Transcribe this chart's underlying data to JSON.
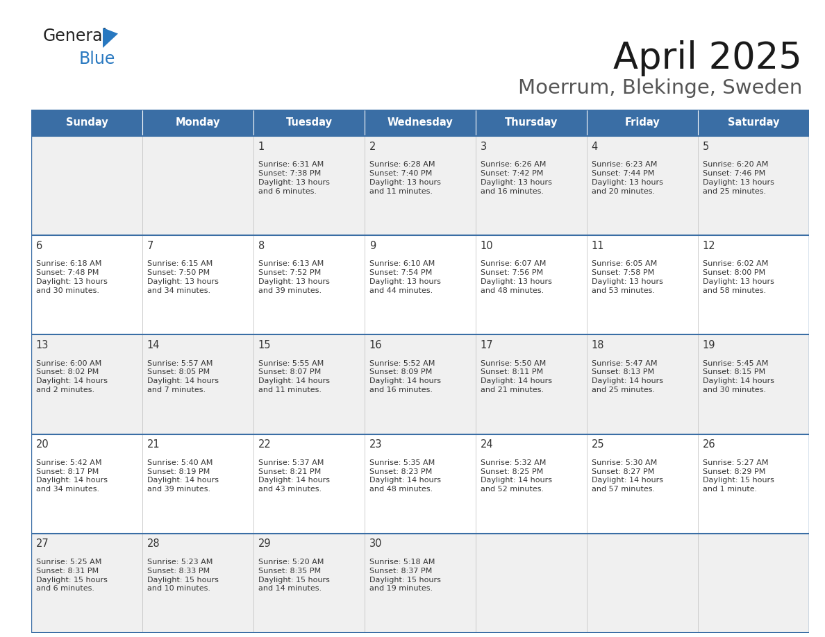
{
  "title": "April 2025",
  "subtitle": "Moerrum, Blekinge, Sweden",
  "header_bg": "#3a6ea5",
  "header_text": "#ffffff",
  "row_bg_odd": "#f0f0f0",
  "row_bg_even": "#ffffff",
  "cell_text": "#333333",
  "border_color": "#3a6ea5",
  "days_of_week": [
    "Sunday",
    "Monday",
    "Tuesday",
    "Wednesday",
    "Thursday",
    "Friday",
    "Saturday"
  ],
  "logo_general_color": "#222222",
  "logo_blue_color": "#2878c0",
  "logo_triangle_color": "#2878c0",
  "weeks": [
    [
      {
        "day": "",
        "info": ""
      },
      {
        "day": "",
        "info": ""
      },
      {
        "day": "1",
        "info": "Sunrise: 6:31 AM\nSunset: 7:38 PM\nDaylight: 13 hours\nand 6 minutes."
      },
      {
        "day": "2",
        "info": "Sunrise: 6:28 AM\nSunset: 7:40 PM\nDaylight: 13 hours\nand 11 minutes."
      },
      {
        "day": "3",
        "info": "Sunrise: 6:26 AM\nSunset: 7:42 PM\nDaylight: 13 hours\nand 16 minutes."
      },
      {
        "day": "4",
        "info": "Sunrise: 6:23 AM\nSunset: 7:44 PM\nDaylight: 13 hours\nand 20 minutes."
      },
      {
        "day": "5",
        "info": "Sunrise: 6:20 AM\nSunset: 7:46 PM\nDaylight: 13 hours\nand 25 minutes."
      }
    ],
    [
      {
        "day": "6",
        "info": "Sunrise: 6:18 AM\nSunset: 7:48 PM\nDaylight: 13 hours\nand 30 minutes."
      },
      {
        "day": "7",
        "info": "Sunrise: 6:15 AM\nSunset: 7:50 PM\nDaylight: 13 hours\nand 34 minutes."
      },
      {
        "day": "8",
        "info": "Sunrise: 6:13 AM\nSunset: 7:52 PM\nDaylight: 13 hours\nand 39 minutes."
      },
      {
        "day": "9",
        "info": "Sunrise: 6:10 AM\nSunset: 7:54 PM\nDaylight: 13 hours\nand 44 minutes."
      },
      {
        "day": "10",
        "info": "Sunrise: 6:07 AM\nSunset: 7:56 PM\nDaylight: 13 hours\nand 48 minutes."
      },
      {
        "day": "11",
        "info": "Sunrise: 6:05 AM\nSunset: 7:58 PM\nDaylight: 13 hours\nand 53 minutes."
      },
      {
        "day": "12",
        "info": "Sunrise: 6:02 AM\nSunset: 8:00 PM\nDaylight: 13 hours\nand 58 minutes."
      }
    ],
    [
      {
        "day": "13",
        "info": "Sunrise: 6:00 AM\nSunset: 8:02 PM\nDaylight: 14 hours\nand 2 minutes."
      },
      {
        "day": "14",
        "info": "Sunrise: 5:57 AM\nSunset: 8:05 PM\nDaylight: 14 hours\nand 7 minutes."
      },
      {
        "day": "15",
        "info": "Sunrise: 5:55 AM\nSunset: 8:07 PM\nDaylight: 14 hours\nand 11 minutes."
      },
      {
        "day": "16",
        "info": "Sunrise: 5:52 AM\nSunset: 8:09 PM\nDaylight: 14 hours\nand 16 minutes."
      },
      {
        "day": "17",
        "info": "Sunrise: 5:50 AM\nSunset: 8:11 PM\nDaylight: 14 hours\nand 21 minutes."
      },
      {
        "day": "18",
        "info": "Sunrise: 5:47 AM\nSunset: 8:13 PM\nDaylight: 14 hours\nand 25 minutes."
      },
      {
        "day": "19",
        "info": "Sunrise: 5:45 AM\nSunset: 8:15 PM\nDaylight: 14 hours\nand 30 minutes."
      }
    ],
    [
      {
        "day": "20",
        "info": "Sunrise: 5:42 AM\nSunset: 8:17 PM\nDaylight: 14 hours\nand 34 minutes."
      },
      {
        "day": "21",
        "info": "Sunrise: 5:40 AM\nSunset: 8:19 PM\nDaylight: 14 hours\nand 39 minutes."
      },
      {
        "day": "22",
        "info": "Sunrise: 5:37 AM\nSunset: 8:21 PM\nDaylight: 14 hours\nand 43 minutes."
      },
      {
        "day": "23",
        "info": "Sunrise: 5:35 AM\nSunset: 8:23 PM\nDaylight: 14 hours\nand 48 minutes."
      },
      {
        "day": "24",
        "info": "Sunrise: 5:32 AM\nSunset: 8:25 PM\nDaylight: 14 hours\nand 52 minutes."
      },
      {
        "day": "25",
        "info": "Sunrise: 5:30 AM\nSunset: 8:27 PM\nDaylight: 14 hours\nand 57 minutes."
      },
      {
        "day": "26",
        "info": "Sunrise: 5:27 AM\nSunset: 8:29 PM\nDaylight: 15 hours\nand 1 minute."
      }
    ],
    [
      {
        "day": "27",
        "info": "Sunrise: 5:25 AM\nSunset: 8:31 PM\nDaylight: 15 hours\nand 6 minutes."
      },
      {
        "day": "28",
        "info": "Sunrise: 5:23 AM\nSunset: 8:33 PM\nDaylight: 15 hours\nand 10 minutes."
      },
      {
        "day": "29",
        "info": "Sunrise: 5:20 AM\nSunset: 8:35 PM\nDaylight: 15 hours\nand 14 minutes."
      },
      {
        "day": "30",
        "info": "Sunrise: 5:18 AM\nSunset: 8:37 PM\nDaylight: 15 hours\nand 19 minutes."
      },
      {
        "day": "",
        "info": ""
      },
      {
        "day": "",
        "info": ""
      },
      {
        "day": "",
        "info": ""
      }
    ]
  ]
}
